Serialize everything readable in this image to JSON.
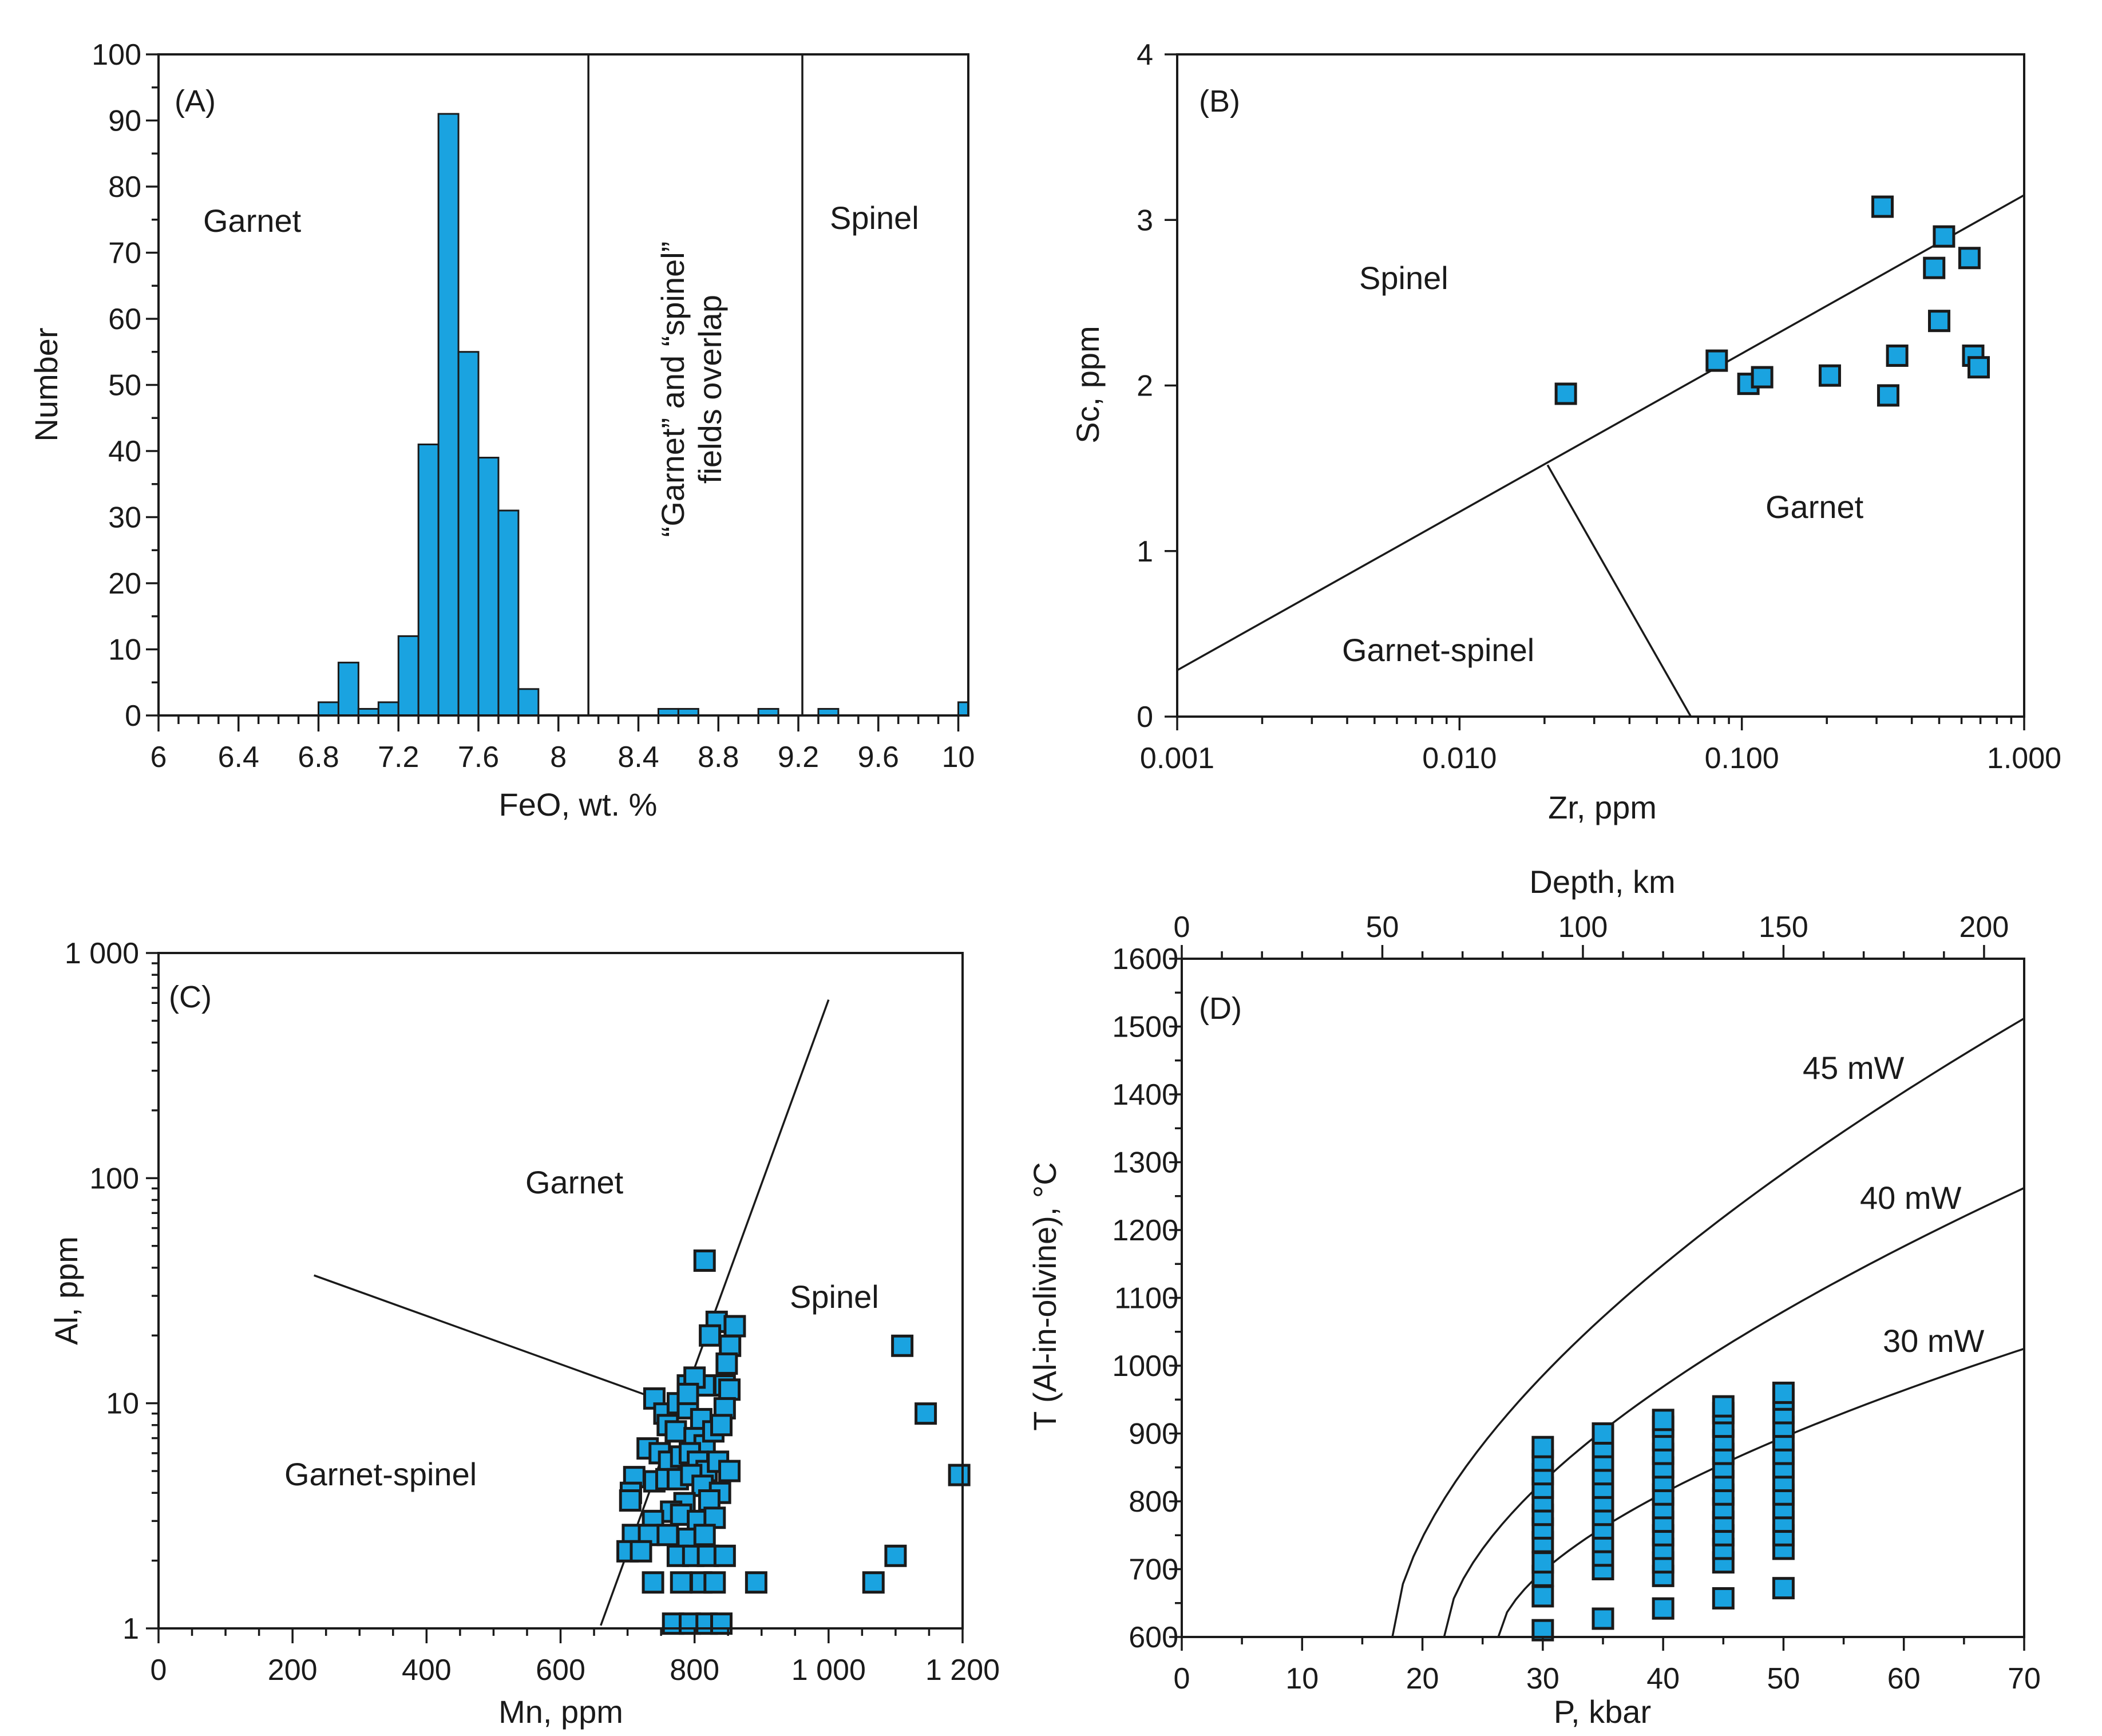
{
  "panels": [
    {
      "id": "A",
      "label": "(A)",
      "type": "bar",
      "xlabel": "FeO, wt. %",
      "ylabel": "Number",
      "xlim": [
        6,
        10.05
      ],
      "ylim": [
        0,
        100
      ],
      "xticks": [
        6,
        6.4,
        6.8,
        7.2,
        7.6,
        8,
        8.4,
        8.8,
        9.2,
        9.6,
        10
      ],
      "xtick_labels": [
        "6",
        "6.4",
        "6.8",
        "7.2",
        "7.6",
        "8",
        "8.4",
        "8.8",
        "9.2",
        "9.6",
        "10"
      ],
      "yticks": [
        0,
        10,
        20,
        30,
        40,
        50,
        60,
        70,
        80,
        90,
        100
      ],
      "ytick_labels": [
        "0",
        "10",
        "20",
        "30",
        "40",
        "50",
        "60",
        "70",
        "80",
        "90",
        "100"
      ],
      "bin_width": 0.1,
      "bins": [
        {
          "x0": 6.8,
          "value": 2
        },
        {
          "x0": 6.9,
          "value": 8
        },
        {
          "x0": 7.0,
          "value": 1
        },
        {
          "x0": 7.1,
          "value": 2
        },
        {
          "x0": 7.2,
          "value": 12
        },
        {
          "x0": 7.3,
          "value": 41
        },
        {
          "x0": 7.4,
          "value": 91
        },
        {
          "x0": 7.5,
          "value": 55
        },
        {
          "x0": 7.6,
          "value": 39
        },
        {
          "x0": 7.7,
          "value": 31
        },
        {
          "x0": 7.8,
          "value": 4
        },
        {
          "x0": 8.5,
          "value": 1
        },
        {
          "x0": 8.6,
          "value": 1
        },
        {
          "x0": 9.0,
          "value": 1
        },
        {
          "x0": 9.3,
          "value": 1
        },
        {
          "x0": 10.0,
          "value": 2
        }
      ],
      "boundaries": [
        8.15,
        9.22
      ],
      "regions": {
        "garnet": "Garnet",
        "overlap_line1": "“Garnet” and “spinel”",
        "overlap_line2": "fields overlap",
        "spinel": "Spinel"
      }
    },
    {
      "id": "B",
      "label": "(B)",
      "type": "scatter",
      "xscale": "log",
      "xlabel": "Zr, ppm",
      "ylabel": "Sc, ppm",
      "xlim": [
        0.001,
        1
      ],
      "ylim": [
        0,
        4
      ],
      "xticks": [
        0.001,
        0.01,
        0.1,
        1
      ],
      "xtick_labels": [
        "0.001",
        "0.010",
        "0.100",
        "1.000"
      ],
      "yticks": [
        0,
        1,
        2,
        3,
        4
      ],
      "ytick_labels": [
        "0",
        "1",
        "2",
        "3",
        "4"
      ],
      "points": [
        [
          0.0238,
          1.95
        ],
        [
          0.0815,
          2.15
        ],
        [
          0.1055,
          2.01
        ],
        [
          0.118,
          2.05
        ],
        [
          0.205,
          2.06
        ],
        [
          0.315,
          3.08
        ],
        [
          0.33,
          1.94
        ],
        [
          0.355,
          2.18
        ],
        [
          0.48,
          2.71
        ],
        [
          0.5,
          2.39
        ],
        [
          0.52,
          2.9
        ],
        [
          0.64,
          2.77
        ],
        [
          0.66,
          2.18
        ],
        [
          0.69,
          2.11
        ]
      ],
      "lines": [
        [
          [
            0.001,
            0.28
          ],
          [
            1,
            3.15
          ]
        ],
        [
          [
            0.0205,
            1.52
          ],
          [
            0.066,
            0
          ]
        ]
      ],
      "regions": {
        "spinel": "Spinel",
        "garnet": "Garnet",
        "garnet_spinel": "Garnet-spinel"
      }
    },
    {
      "id": "C",
      "label": "(C)",
      "type": "scatter",
      "yscale": "log",
      "xlabel": "Mn, ppm",
      "ylabel": "Al, ppm",
      "xlim": [
        0,
        1200
      ],
      "ylim": [
        1,
        1000
      ],
      "xticks": [
        0,
        200,
        400,
        600,
        800,
        1000,
        1200
      ],
      "xtick_labels": [
        "0",
        "200",
        "400",
        "600",
        "800",
        "1 000",
        "1 200"
      ],
      "yticks": [
        1,
        10,
        100,
        1000
      ],
      "ytick_labels": [
        "1",
        "10",
        "100",
        "1 000"
      ],
      "points": [
        [
          815,
          43
        ],
        [
          833,
          23
        ],
        [
          860,
          22
        ],
        [
          823,
          20
        ],
        [
          853,
          18
        ],
        [
          848,
          15
        ],
        [
          1110,
          18
        ],
        [
          845,
          12
        ],
        [
          852,
          11.5
        ],
        [
          815,
          12
        ],
        [
          790,
          12
        ],
        [
          800,
          13
        ],
        [
          740,
          10.5
        ],
        [
          755,
          9
        ],
        [
          775,
          10
        ],
        [
          790,
          9.5
        ],
        [
          810,
          8.5
        ],
        [
          845,
          9.5
        ],
        [
          790,
          11
        ],
        [
          760,
          8
        ],
        [
          772,
          7.5
        ],
        [
          800,
          7
        ],
        [
          815,
          6.5
        ],
        [
          828,
          7.5
        ],
        [
          840,
          8
        ],
        [
          730,
          6.3
        ],
        [
          748,
          6
        ],
        [
          762,
          5.5
        ],
        [
          780,
          5.8
        ],
        [
          793,
          6
        ],
        [
          805,
          5.5
        ],
        [
          818,
          5
        ],
        [
          835,
          5.5
        ],
        [
          852,
          5
        ],
        [
          710,
          4.7
        ],
        [
          705,
          4
        ],
        [
          704,
          3.7
        ],
        [
          740,
          4.5
        ],
        [
          758,
          4.6
        ],
        [
          775,
          4.6
        ],
        [
          795,
          4.8
        ],
        [
          812,
          4.3
        ],
        [
          838,
          4
        ],
        [
          822,
          3.7
        ],
        [
          785,
          3.6
        ],
        [
          765,
          3.3
        ],
        [
          1145,
          9
        ],
        [
          1195,
          4.8
        ],
        [
          738,
          3
        ],
        [
          780,
          3.2
        ],
        [
          805,
          3
        ],
        [
          830,
          3.1
        ],
        [
          708,
          2.6
        ],
        [
          732,
          2.6
        ],
        [
          760,
          2.6
        ],
        [
          790,
          2.5
        ],
        [
          815,
          2.6
        ],
        [
          700,
          2.2
        ],
        [
          720,
          2.2
        ],
        [
          775,
          2.1
        ],
        [
          798,
          2.1
        ],
        [
          820,
          2.1
        ],
        [
          845,
          2.1
        ],
        [
          1100,
          2.1
        ],
        [
          738,
          1.6
        ],
        [
          780,
          1.6
        ],
        [
          810,
          1.6
        ],
        [
          830,
          1.6
        ],
        [
          892,
          1.6
        ],
        [
          1067,
          1.6
        ],
        [
          768,
          1.05
        ],
        [
          793,
          1.05
        ],
        [
          818,
          1.05
        ],
        [
          840,
          1.05
        ]
      ],
      "lines": [
        [
          [
            660,
            1.03
          ],
          [
            1000,
            620
          ]
        ],
        [
          [
            232,
            37
          ],
          [
            742,
            10.5
          ]
        ]
      ],
      "regions": {
        "garnet": "Garnet",
        "spinel": "Spinel",
        "garnet_spinel": "Garnet-spinel"
      }
    },
    {
      "id": "D",
      "label": "(D)",
      "type": "scatter",
      "xlabel": "P, kbar",
      "ylabel": "T (Al-in-olivine), °C",
      "top_xlabel": "Depth, km",
      "xlim": [
        0,
        70
      ],
      "ylim": [
        600,
        1600
      ],
      "top_xlim": [
        0,
        210
      ],
      "xticks": [
        0,
        10,
        20,
        30,
        40,
        50,
        60,
        70
      ],
      "xtick_labels": [
        "0",
        "10",
        "20",
        "30",
        "40",
        "50",
        "60",
        "70"
      ],
      "yticks": [
        600,
        700,
        800,
        900,
        1000,
        1100,
        1200,
        1300,
        1400,
        1500,
        1600
      ],
      "ytick_labels": [
        "600",
        "700",
        "800",
        "900",
        "1000",
        "1100",
        "1200",
        "1300",
        "1400",
        "1500",
        "1600"
      ],
      "top_xticks": [
        0,
        50,
        100,
        150,
        200
      ],
      "top_xtick_labels": [
        "0",
        "50",
        "100",
        "150",
        "200"
      ],
      "columns": [
        {
          "p": 30,
          "t": [
            610,
            660,
            690,
            710,
            740,
            760,
            780,
            800,
            820,
            840,
            860,
            880
          ]
        },
        {
          "p": 35,
          "t": [
            627,
            700,
            720,
            740,
            760,
            780,
            800,
            820,
            840,
            860,
            880,
            900
          ]
        },
        {
          "p": 40,
          "t": [
            642,
            690,
            710,
            730,
            750,
            770,
            790,
            810,
            830,
            850,
            870,
            890,
            910,
            920
          ]
        },
        {
          "p": 45,
          "t": [
            657,
            710,
            730,
            750,
            770,
            790,
            810,
            830,
            850,
            870,
            890,
            910,
            930,
            940
          ]
        },
        {
          "p": 50,
          "t": [
            672,
            730,
            750,
            770,
            790,
            810,
            830,
            850,
            870,
            890,
            910,
            930,
            950,
            960
          ]
        }
      ],
      "geotherms": [
        {
          "label": "45 mW",
          "p_start": 17.5,
          "t_end": 1512,
          "k": 0.6
        },
        {
          "label": "40 mW",
          "p_start": 21.8,
          "t_end": 1262,
          "k": 0.6
        },
        {
          "label": "30 mW",
          "p_start": 26.3,
          "t_end": 1025,
          "k": 0.6
        }
      ]
    }
  ]
}
